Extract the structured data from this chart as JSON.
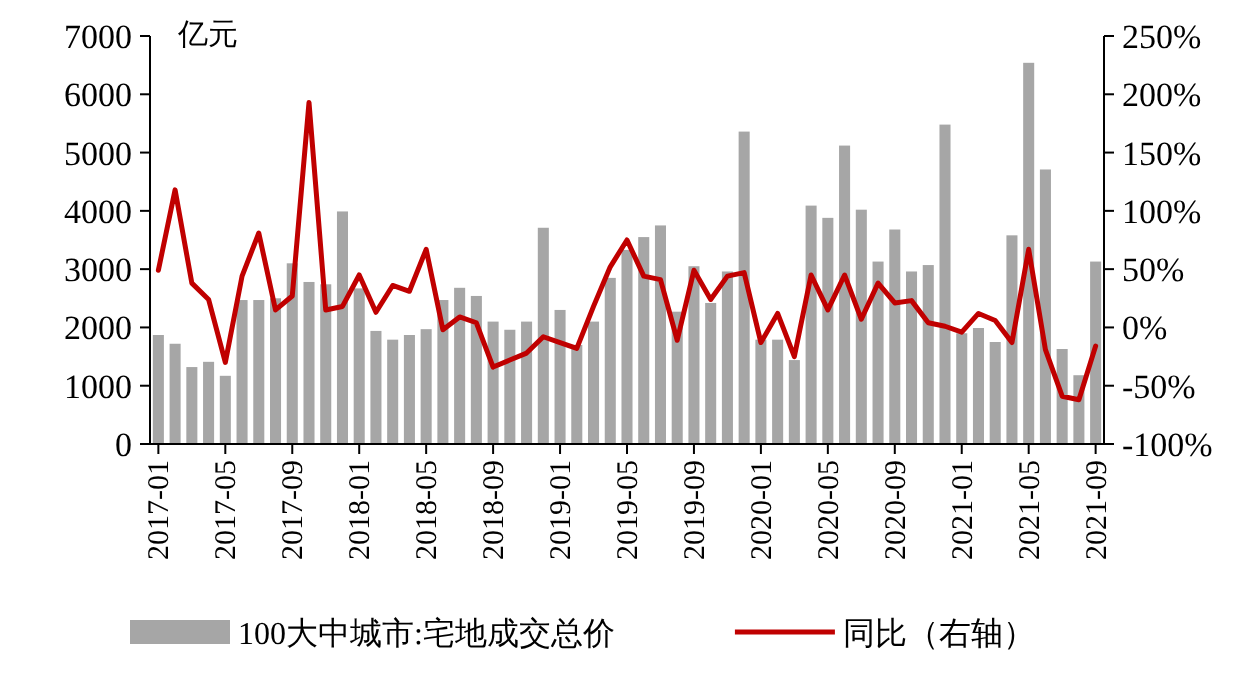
{
  "chart_data": {
    "type": "bar",
    "ylabel": "亿元",
    "categories": [
      "2017-01",
      null,
      null,
      null,
      "2017-05",
      null,
      null,
      null,
      "2017-09",
      null,
      null,
      null,
      "2018-01",
      null,
      null,
      null,
      "2018-05",
      null,
      null,
      null,
      "2018-09",
      null,
      null,
      null,
      "2019-01",
      null,
      null,
      null,
      "2019-05",
      null,
      null,
      null,
      "2019-09",
      null,
      null,
      null,
      "2020-01",
      null,
      null,
      null,
      "2020-05",
      null,
      null,
      null,
      "2020-09",
      null,
      null,
      null,
      "2021-01",
      null,
      null,
      null,
      "2021-05",
      null,
      null,
      null,
      "2021-09"
    ],
    "series": [
      {
        "name": "100大中城市:宅地成交总价",
        "color": "#a6a6a6",
        "values": [
          1870,
          1720,
          1320,
          1410,
          1170,
          2470,
          2470,
          2500,
          3100,
          2780,
          2740,
          3990,
          2670,
          1940,
          1790,
          1870,
          1970,
          2470,
          2680,
          2540,
          2100,
          1960,
          2100,
          3710,
          2300,
          1700,
          2100,
          2850,
          3330,
          3550,
          3750,
          2270,
          3050,
          2420,
          2960,
          5360,
          1790,
          1790,
          1440,
          4090,
          3880,
          5120,
          4020,
          3130,
          3680,
          2960,
          3070,
          5480,
          1900,
          1990,
          1750,
          3580,
          6540,
          4710,
          1630,
          1180,
          3130
        ]
      },
      {
        "name": "同比（右轴）",
        "type": "line",
        "axis": "y2",
        "color": "#c00000",
        "values": [
          49,
          118,
          38,
          24,
          -30,
          44,
          81,
          15,
          27,
          193,
          15,
          18,
          45,
          13,
          36,
          31,
          67,
          -2,
          9,
          4,
          -34,
          -28,
          -22,
          -8,
          -13,
          -18,
          18,
          52,
          75,
          44,
          41,
          -11,
          49,
          24,
          44,
          47,
          -13,
          12,
          -25,
          45,
          15,
          45,
          7,
          38,
          21,
          23,
          4,
          1,
          -4,
          12,
          6,
          -13,
          67,
          -19,
          -59,
          -62,
          -16
        ]
      }
    ],
    "ylim": [
      0,
      7000
    ],
    "yticks": [
      0,
      1000,
      2000,
      3000,
      4000,
      5000,
      6000,
      7000
    ],
    "y2lim": [
      -100,
      250
    ],
    "y2ticks": [
      {
        "value": -100,
        "label": "-100%"
      },
      {
        "value": -50,
        "label": "-50%"
      },
      {
        "value": 0,
        "label": "0%"
      },
      {
        "value": 50,
        "label": "50%"
      },
      {
        "value": 100,
        "label": "100%"
      },
      {
        "value": 150,
        "label": "150%"
      },
      {
        "value": 200,
        "label": "200%"
      },
      {
        "value": 250,
        "label": "250%"
      }
    ],
    "grid": false,
    "legend": "bottom"
  }
}
